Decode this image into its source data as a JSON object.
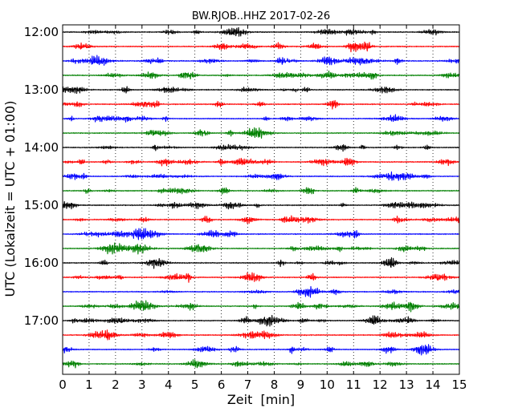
{
  "chart_data": {
    "type": "line",
    "title": "BW.RJOB..HHZ 2017-02-26",
    "xlabel": "Zeit  [min]",
    "ylabel": "UTC (Lokalzeit = UTC + 01:00)",
    "xlim": [
      0,
      15
    ],
    "x_ticks": [
      "0",
      "1",
      "2",
      "3",
      "4",
      "5",
      "6",
      "7",
      "8",
      "9",
      "10",
      "11",
      "12",
      "13",
      "14",
      "15"
    ],
    "y_ticks": [
      "12:00",
      "13:00",
      "14:00",
      "15:00",
      "16:00",
      "17:00"
    ],
    "y_tick_positions": [
      "12:00",
      "13:00",
      "14:00",
      "15:00",
      "16:00",
      "17:00"
    ],
    "traces_per_hour": 4,
    "trace_minutes": 15,
    "trace_start_times": [
      "12:00",
      "12:15",
      "12:30",
      "12:45",
      "13:00",
      "13:15",
      "13:30",
      "13:45",
      "14:00",
      "14:15",
      "14:30",
      "14:45",
      "15:00",
      "15:15",
      "15:30",
      "15:45",
      "16:00",
      "16:15",
      "16:30",
      "16:45",
      "17:00",
      "17:15",
      "17:30",
      "17:45"
    ],
    "trace_colors": [
      "#000000",
      "#ff0000",
      "#0000ff",
      "#008000"
    ],
    "grid": "vertical-dotted",
    "legend": "none"
  }
}
